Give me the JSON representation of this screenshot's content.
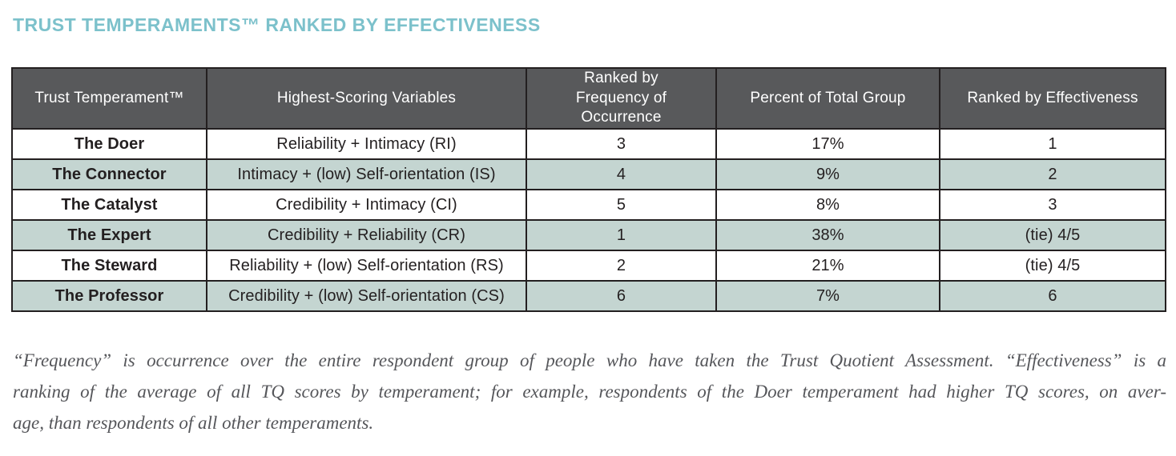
{
  "title": "TRUST TEMPERAMENTS™ RANKED BY EFFECTIVENESS",
  "colors": {
    "title_teal": "#7cc1cb",
    "header_background": "#58595b",
    "header_text": "#ffffff",
    "row_tint": "#c4d5d1",
    "border": "#231f20",
    "body_text": "#231f20",
    "footnote_text": "#55565a"
  },
  "table": {
    "columns": [
      "Trust Temperament™",
      "Highest-Scoring Variables",
      "Ranked by Frequency of Occurrence",
      "Percent of Total Group",
      "Ranked by Effectiveness"
    ],
    "rows": [
      {
        "temperament": "The Doer",
        "variables": "Reliability + Intimacy (RI)",
        "frequency_rank": "3",
        "percent": "17%",
        "effectiveness_rank": "1"
      },
      {
        "temperament": "The Connector",
        "variables": "Intimacy + (low) Self-orientation (IS)",
        "frequency_rank": "4",
        "percent": "9%",
        "effectiveness_rank": "2"
      },
      {
        "temperament": "The Catalyst",
        "variables": "Credibility + Intimacy (CI)",
        "frequency_rank": "5",
        "percent": "8%",
        "effectiveness_rank": "3"
      },
      {
        "temperament": "The Expert",
        "variables": "Credibility + Reliability (CR)",
        "frequency_rank": "1",
        "percent": "38%",
        "effectiveness_rank": "(tie) 4/5"
      },
      {
        "temperament": "The Steward",
        "variables": "Reliability + (low) Self-orientation (RS)",
        "frequency_rank": "2",
        "percent": "21%",
        "effectiveness_rank": "(tie) 4/5"
      },
      {
        "temperament": "The Professor",
        "variables": "Credibility + (low) Self-orientation (CS)",
        "frequency_rank": "6",
        "percent": "7%",
        "effectiveness_rank": "6"
      }
    ]
  },
  "footnote": {
    "lines": [
      "“Frequency” is occurrence over the entire respondent group of people who have taken the Trust Quotient Assessment. “Effectiveness” is a",
      "ranking of the average of all TQ scores by temperament; for example, respondents of the Doer temperament had higher TQ scores, on aver-",
      "age, than respondents of all other temperaments."
    ]
  }
}
